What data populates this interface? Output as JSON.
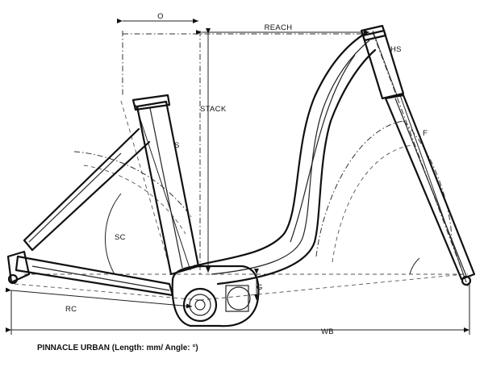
{
  "labels": {
    "o": "O",
    "reach": "REACH",
    "hs": "HS",
    "stack": "STACK",
    "s": "S",
    "f": "F",
    "sc": "SC",
    "g": "G",
    "rc": "RC",
    "wb": "WB"
  },
  "caption": "PINNACLE URBAN (Length: mm/ Angle: °)",
  "colors": {
    "line": "#111111",
    "background": "#ffffff"
  }
}
